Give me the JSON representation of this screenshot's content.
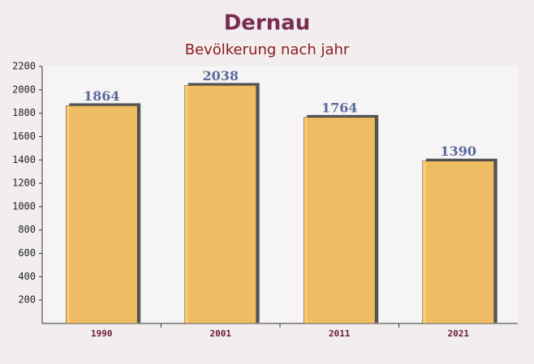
{
  "chart_data": {
    "type": "bar",
    "title": "Dernau",
    "subtitle": "Bevölkerung nach jahr",
    "categories": [
      "1990",
      "2001",
      "2011",
      "2021"
    ],
    "values": [
      1864,
      2038,
      1764,
      1390
    ],
    "color": "#ffc965",
    "ylim": [
      0,
      2200
    ],
    "yticks": [
      200,
      400,
      600,
      800,
      1000,
      1200,
      1400,
      1600,
      1800,
      2000,
      2200
    ]
  }
}
